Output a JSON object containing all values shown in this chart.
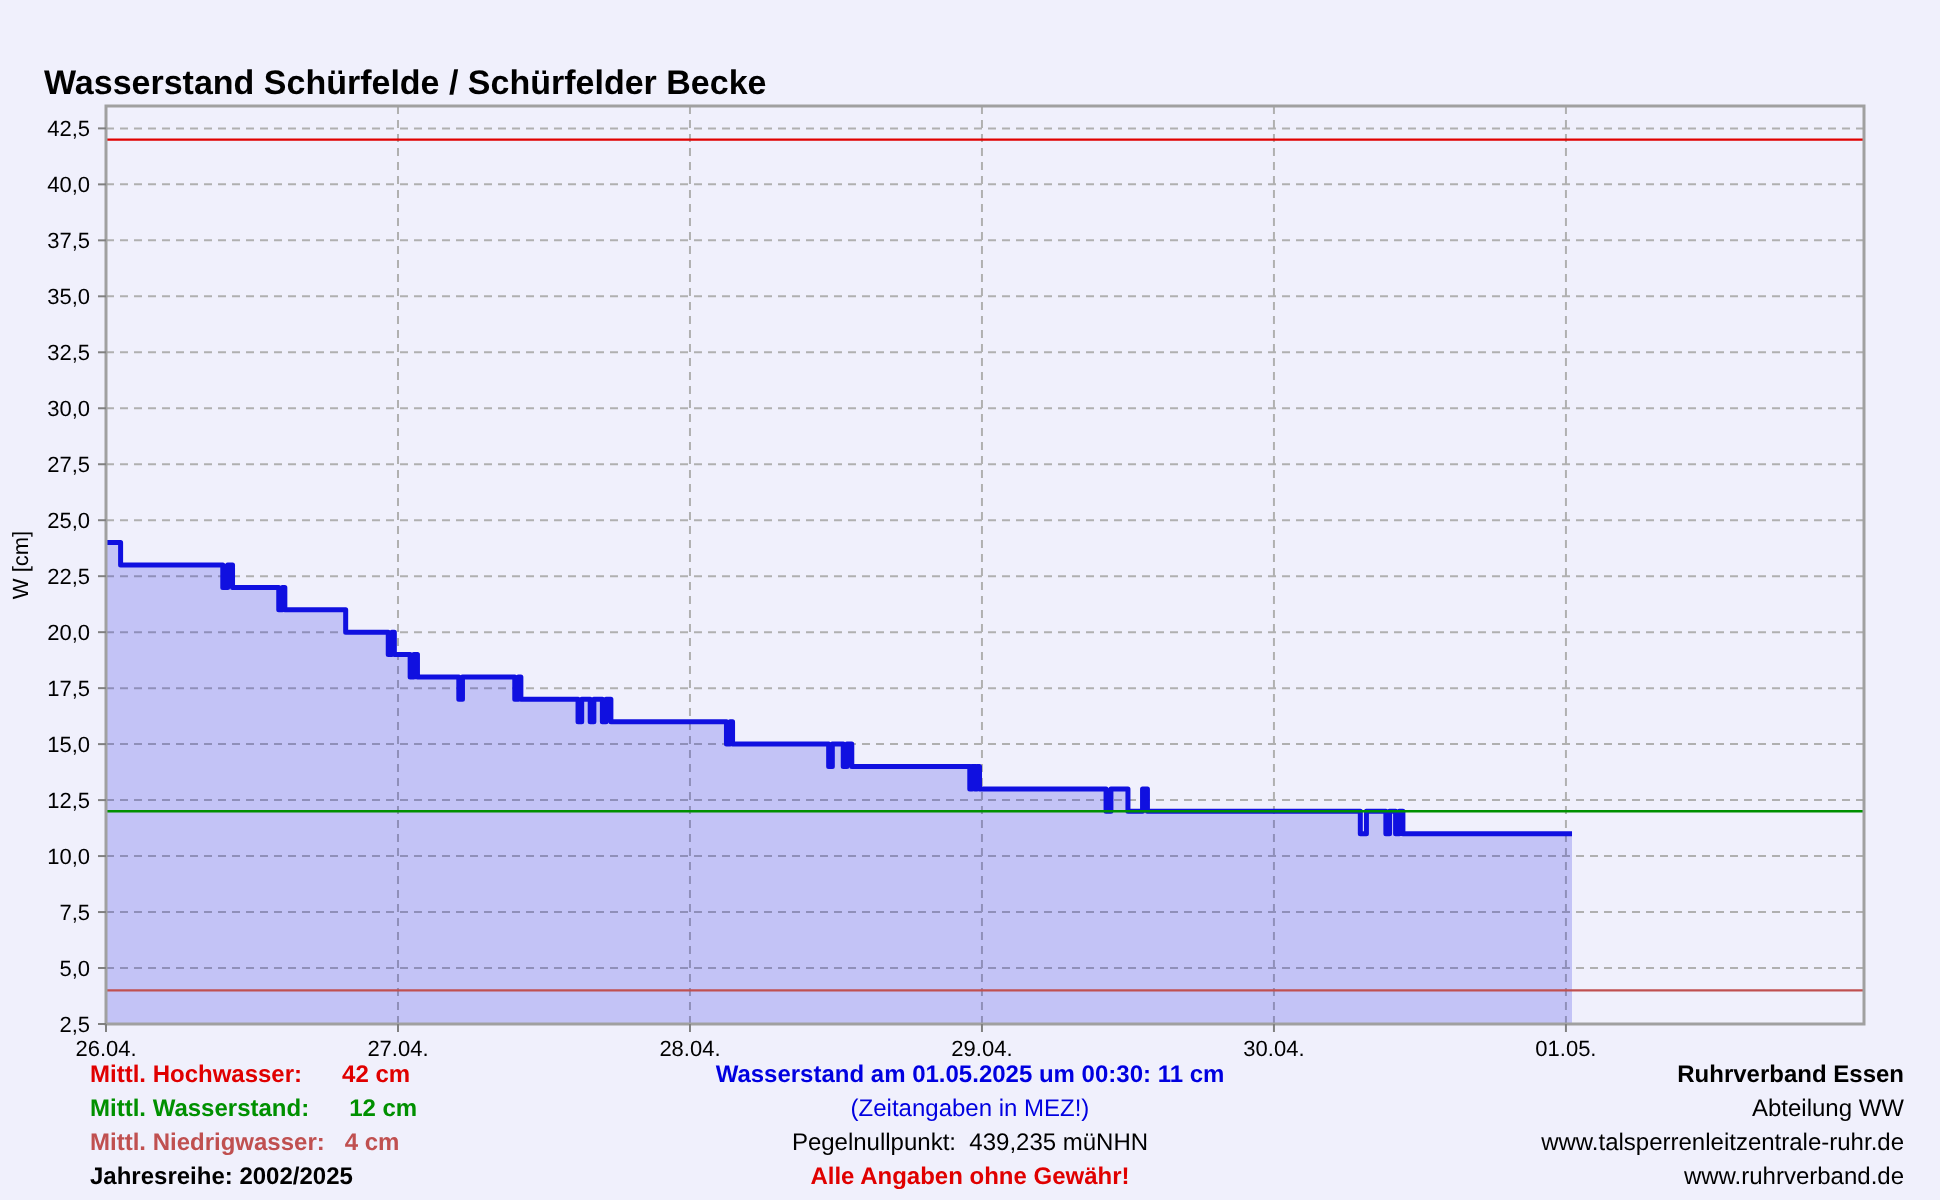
{
  "chart_data": {
    "type": "area",
    "title": "Wasserstand Schürfelde / Schürfelder Becke",
    "ylabel": "W [cm]",
    "xlim": [
      "2025-04-26T00:00",
      "2025-05-02T00:30"
    ],
    "ylim": [
      2.5,
      43.5
    ],
    "xticks": [
      {
        "value": "2025-04-26",
        "label": "26.04."
      },
      {
        "value": "2025-04-27",
        "label": "27.04."
      },
      {
        "value": "2025-04-28",
        "label": "28.04."
      },
      {
        "value": "2025-04-29",
        "label": "29.04."
      },
      {
        "value": "2025-04-30",
        "label": "30.04."
      },
      {
        "value": "2025-05-01",
        "label": "01.05."
      }
    ],
    "yticks": [
      {
        "value": 2.5,
        "label": "2,5"
      },
      {
        "value": 5,
        "label": "5,0"
      },
      {
        "value": 7.5,
        "label": "7,5"
      },
      {
        "value": 10,
        "label": "10,0"
      },
      {
        "value": 12.5,
        "label": "12,5"
      },
      {
        "value": 15,
        "label": "15,0"
      },
      {
        "value": 17.5,
        "label": "17,5"
      },
      {
        "value": 20,
        "label": "20,0"
      },
      {
        "value": 22.5,
        "label": "22,5"
      },
      {
        "value": 25,
        "label": "25,0"
      },
      {
        "value": 27.5,
        "label": "27,5"
      },
      {
        "value": 30,
        "label": "30,0"
      },
      {
        "value": 32.5,
        "label": "32,5"
      },
      {
        "value": 35,
        "label": "35,0"
      },
      {
        "value": 37.5,
        "label": "37,5"
      },
      {
        "value": 40,
        "label": "40,0"
      },
      {
        "value": 42.5,
        "label": "42,5"
      }
    ],
    "grid": true,
    "series": [
      {
        "color": "#1010e0",
        "x": [
          "2025-04-26T00:00",
          "2025-04-26T01:12",
          "2025-04-26T01:12",
          "2025-04-26T09:36",
          "2025-04-26T09:36",
          "2025-04-26T10:00",
          "2025-04-26T10:00",
          "2025-04-26T10:24",
          "2025-04-26T10:24",
          "2025-04-26T14:12",
          "2025-04-26T14:12",
          "2025-04-26T14:30",
          "2025-04-26T14:30",
          "2025-04-26T14:42",
          "2025-04-26T14:42",
          "2025-04-26T19:42",
          "2025-04-26T19:42",
          "2025-04-26T23:12",
          "2025-04-26T23:12",
          "2025-04-26T23:30",
          "2025-04-26T23:30",
          "2025-04-26T23:42",
          "2025-04-26T23:42",
          "2025-04-27T01:00",
          "2025-04-27T01:00",
          "2025-04-27T01:18",
          "2025-04-27T01:18",
          "2025-04-27T01:36",
          "2025-04-27T01:36",
          "2025-04-27T05:00",
          "2025-04-27T05:00",
          "2025-04-27T05:18",
          "2025-04-27T05:18",
          "2025-04-27T09:36",
          "2025-04-27T09:36",
          "2025-04-27T09:54",
          "2025-04-27T09:54",
          "2025-04-27T10:06",
          "2025-04-27T10:06",
          "2025-04-27T14:48",
          "2025-04-27T14:48",
          "2025-04-27T15:06",
          "2025-04-27T15:06",
          "2025-04-27T15:48",
          "2025-04-27T15:48",
          "2025-04-27T16:06",
          "2025-04-27T16:06",
          "2025-04-27T16:48",
          "2025-04-27T16:48",
          "2025-04-27T17:06",
          "2025-04-27T17:06",
          "2025-04-27T17:30",
          "2025-04-27T17:30",
          "2025-04-28T03:00",
          "2025-04-28T03:00",
          "2025-04-28T03:18",
          "2025-04-28T03:18",
          "2025-04-28T03:30",
          "2025-04-28T03:30",
          "2025-04-28T11:24",
          "2025-04-28T11:24",
          "2025-04-28T11:42",
          "2025-04-28T11:42",
          "2025-04-28T12:36",
          "2025-04-28T12:36",
          "2025-04-28T12:54",
          "2025-04-28T12:54",
          "2025-04-28T13:18",
          "2025-04-28T13:18",
          "2025-04-28T23:00",
          "2025-04-28T23:00",
          "2025-04-28T23:12",
          "2025-04-28T23:12",
          "2025-04-28T23:24",
          "2025-04-28T23:24",
          "2025-04-28T23:36",
          "2025-04-28T23:36",
          "2025-04-28T23:48",
          "2025-04-28T23:48",
          "2025-04-29T10:12",
          "2025-04-29T10:12",
          "2025-04-29T10:36",
          "2025-04-29T10:36",
          "2025-04-29T12:00",
          "2025-04-29T12:00",
          "2025-04-29T13:12",
          "2025-04-29T13:12",
          "2025-04-29T13:36",
          "2025-04-29T13:36",
          "2025-04-30T07:06",
          "2025-04-30T07:06",
          "2025-04-30T07:36",
          "2025-04-30T07:36",
          "2025-04-30T09:12",
          "2025-04-30T09:12",
          "2025-04-30T09:30",
          "2025-04-30T09:30",
          "2025-04-30T10:00",
          "2025-04-30T10:00",
          "2025-04-30T10:18",
          "2025-04-30T10:18",
          "2025-04-30T10:36",
          "2025-04-30T10:36",
          "2025-05-01T00:30"
        ],
        "values": [
          24,
          24,
          23,
          23,
          22,
          22,
          23,
          23,
          22,
          22,
          21,
          21,
          22,
          22,
          21,
          21,
          20,
          20,
          19,
          19,
          20,
          20,
          19,
          19,
          18,
          18,
          19,
          19,
          18,
          18,
          17,
          17,
          18,
          18,
          17,
          17,
          18,
          18,
          17,
          17,
          16,
          16,
          17,
          17,
          16,
          16,
          17,
          17,
          16,
          16,
          17,
          17,
          16,
          16,
          15,
          15,
          16,
          16,
          15,
          15,
          14,
          14,
          15,
          15,
          14,
          14,
          15,
          15,
          14,
          14,
          13,
          13,
          14,
          14,
          13,
          13,
          14,
          14,
          13,
          13,
          12,
          12,
          13,
          13,
          12,
          12,
          13,
          13,
          12,
          12,
          11,
          11,
          12,
          12,
          11,
          11,
          12,
          12,
          11,
          11,
          12,
          12,
          11,
          11
        ]
      }
    ],
    "ref_lines": [
      {
        "axis": "y",
        "value": 42,
        "label": "Mittl. Hochwasser:      42 cm",
        "color": "#e00000"
      },
      {
        "axis": "y",
        "value": 12,
        "label": "Mittl. Wasserstand:      12 cm",
        "color": "#009000"
      },
      {
        "axis": "y",
        "value": 4,
        "label": "Mittl. Niedrigwasser:   4 cm",
        "color": "#c05050"
      }
    ],
    "annotations": [
      "Jahresreihe: 2002/2025",
      "Wasserstand am 01.05.2025 um 00:30: 11 cm",
      "(Zeitangaben in MEZ!)",
      "Pegelnullpunkt:  439,235 müNHN",
      "Alle Angaben ohne Gewähr!",
      "Ruhrverband Essen",
      "Abteilung WW",
      "www.talsperrenleitzentrale-ruhr.de",
      "www.ruhrverband.de"
    ]
  }
}
